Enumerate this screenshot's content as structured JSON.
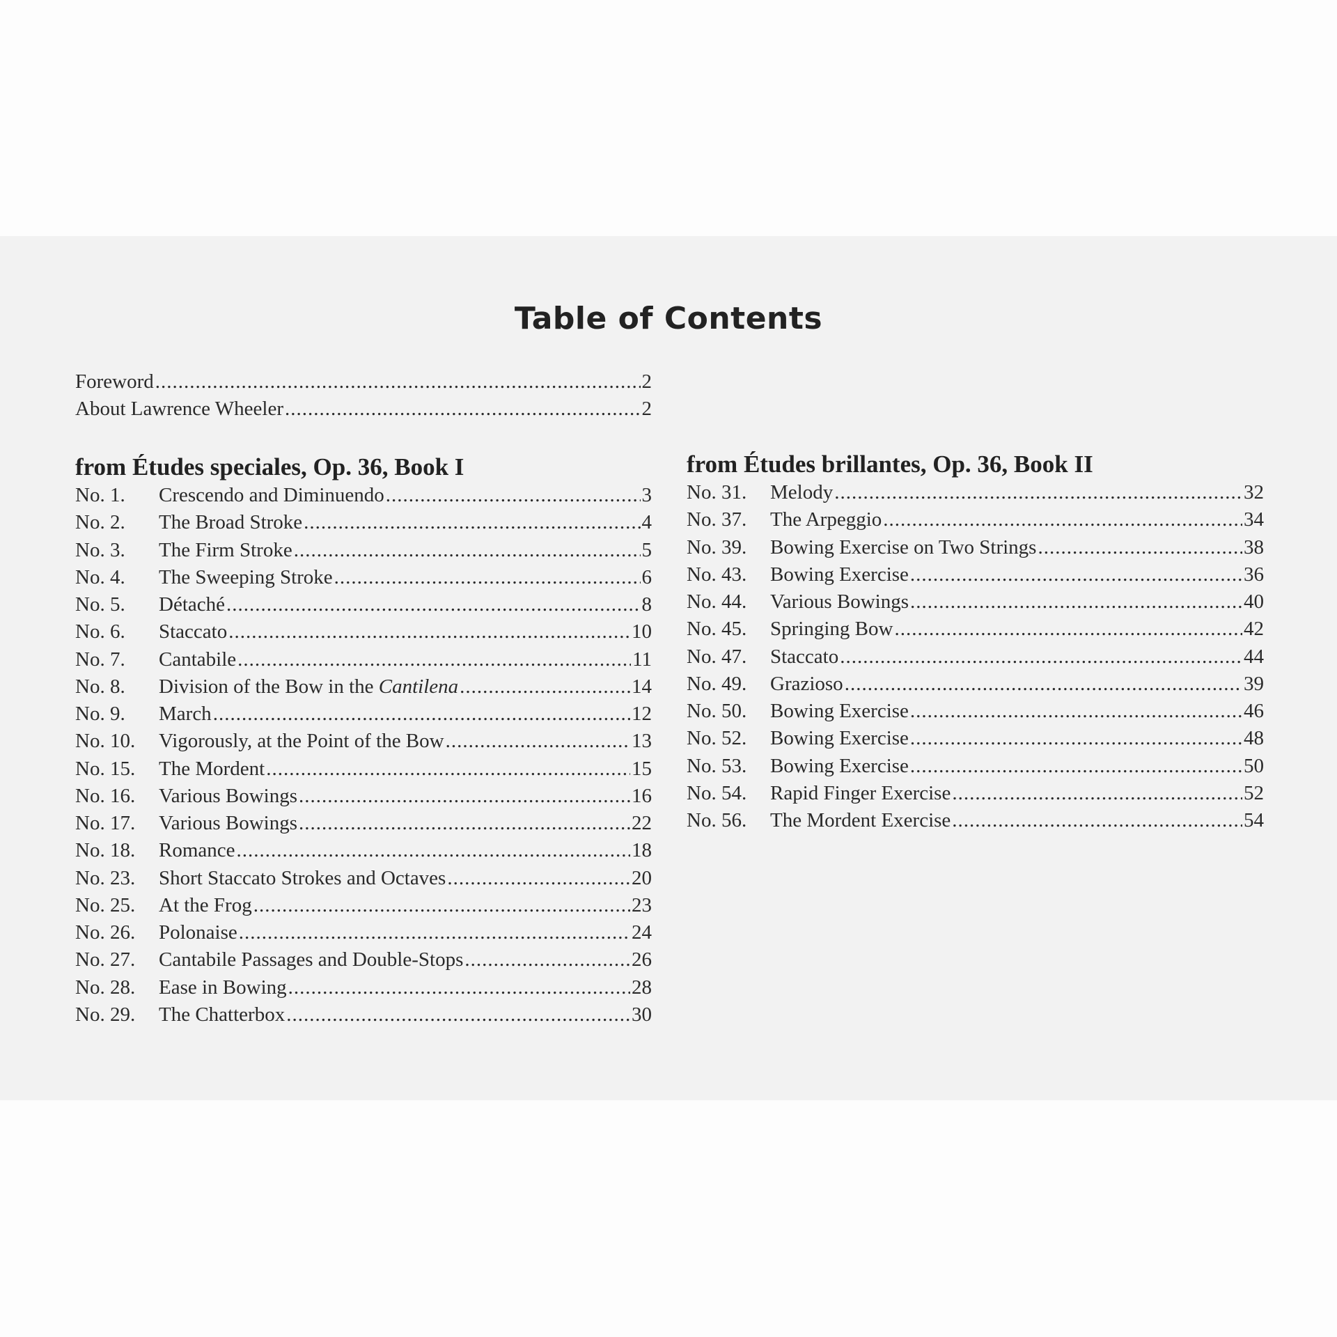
{
  "title": "Table of Contents",
  "front_matter": [
    {
      "title": "Foreword",
      "page": "2"
    },
    {
      "title": "About Lawrence Wheeler",
      "page": "2"
    }
  ],
  "sections": [
    {
      "heading": "from Études speciales, Op. 36, Book I",
      "entries": [
        {
          "no": "No. 1.",
          "title": "Crescendo and Diminuendo",
          "page": "3"
        },
        {
          "no": "No. 2.",
          "title": "The Broad Stroke",
          "page": "4"
        },
        {
          "no": "No. 3.",
          "title": "The Firm Stroke",
          "page": "5"
        },
        {
          "no": "No. 4.",
          "title": "The Sweeping Stroke",
          "page": "6"
        },
        {
          "no": "No. 5.",
          "title": "Détaché",
          "page": "8"
        },
        {
          "no": "No. 6.",
          "title": "Staccato",
          "page": "10"
        },
        {
          "no": "No. 7.",
          "title": "Cantabile",
          "page": "11"
        },
        {
          "no": "No. 8.",
          "title": "Division of the Bow in the ",
          "title_italic": "Cantilena",
          "page": "14"
        },
        {
          "no": "No. 9.",
          "title": "March",
          "page": "12"
        },
        {
          "no": "No. 10.",
          "title": "Vigorously, at the Point of the Bow",
          "page": "13"
        },
        {
          "no": "No. 15.",
          "title": "The Mordent",
          "page": "15"
        },
        {
          "no": "No. 16.",
          "title": "Various Bowings",
          "page": "16"
        },
        {
          "no": "No. 17.",
          "title": "Various Bowings",
          "page": "22"
        },
        {
          "no": "No. 18.",
          "title": "Romance",
          "page": "18"
        },
        {
          "no": "No. 23.",
          "title": "Short Staccato Strokes and Octaves",
          "page": "20"
        },
        {
          "no": "No. 25.",
          "title": "At the Frog",
          "page": "23"
        },
        {
          "no": "No. 26.",
          "title": "Polonaise",
          "page": "24"
        },
        {
          "no": "No. 27.",
          "title": "Cantabile Passages and Double-Stops",
          "page": "26"
        },
        {
          "no": "No. 28.",
          "title": "Ease in Bowing",
          "page": "28"
        },
        {
          "no": "No. 29.",
          "title": "The Chatterbox",
          "page": "30"
        }
      ]
    },
    {
      "heading": "from Études brillantes, Op. 36, Book II",
      "entries": [
        {
          "no": "No. 31.",
          "title": "Melody",
          "page": "32"
        },
        {
          "no": "No. 37.",
          "title": "The Arpeggio",
          "page": "34"
        },
        {
          "no": "No. 39.",
          "title": "Bowing Exercise on Two Strings",
          "page": "38"
        },
        {
          "no": "No. 43.",
          "title": "Bowing Exercise",
          "page": "36"
        },
        {
          "no": "No. 44.",
          "title": "Various Bowings",
          "page": "40"
        },
        {
          "no": "No. 45.",
          "title": "Springing Bow",
          "page": "42"
        },
        {
          "no": "No. 47.",
          "title": "Staccato",
          "page": "44"
        },
        {
          "no": "No. 49.",
          "title": "Grazioso",
          "page": "39"
        },
        {
          "no": "No. 50.",
          "title": "Bowing Exercise",
          "page": "46"
        },
        {
          "no": "No. 52.",
          "title": "Bowing Exercise",
          "page": "48"
        },
        {
          "no": "No. 53.",
          "title": "Bowing Exercise",
          "page": "50"
        },
        {
          "no": "No. 54.",
          "title": "Rapid Finger Exercise",
          "page": "52"
        },
        {
          "no": "No. 56.",
          "title": "The Mordent Exercise",
          "page": "54"
        }
      ]
    }
  ]
}
